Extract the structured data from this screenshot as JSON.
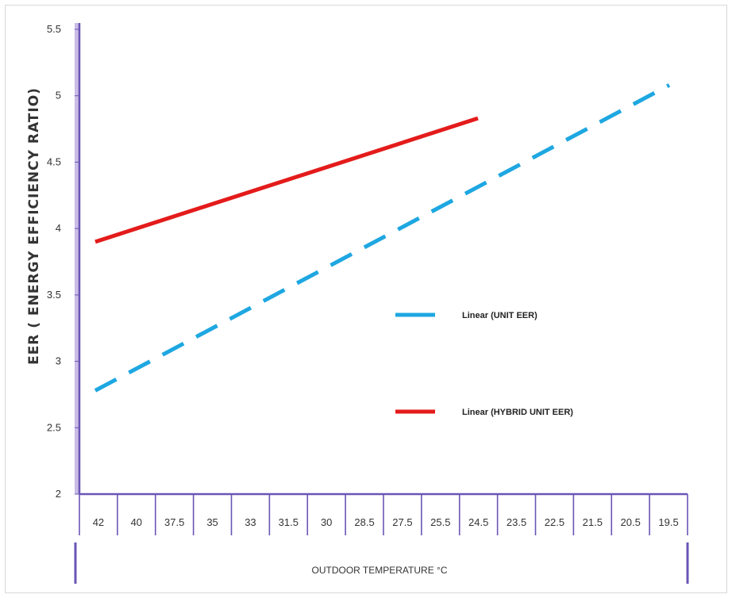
{
  "chart_data": {
    "type": "line",
    "xlabel": "OUTDOOR TEMPERATURE  °C",
    "ylabel": "EER ( ENERGY EFFICIENCY RATIO)",
    "categories": [
      "42",
      "40",
      "37.5",
      "35",
      "33",
      "31.5",
      "30",
      "28.5",
      "27.5",
      "25.5",
      "24.5",
      "23.5",
      "22.5",
      "21.5",
      "20.5",
      "19.5"
    ],
    "yticks": [
      "5.5",
      "5",
      "4.5",
      "4",
      "3.5",
      "3",
      "2.5",
      "2"
    ],
    "ylim": [
      2,
      5.5
    ],
    "grid": false,
    "legend_position": "right-center",
    "series": [
      {
        "name": "Linear (UNIT EER)",
        "color": "#1EA7E1",
        "dash": true,
        "start": {
          "category": "42",
          "value": 2.78
        },
        "end": {
          "category": "19.5",
          "value": 5.08
        }
      },
      {
        "name": "Linear (HYBRID UNIT EER)",
        "color": "#E41B1B",
        "dash": false,
        "start": {
          "category": "42",
          "value": 3.9
        },
        "end": {
          "category": "24.5",
          "value": 4.83
        }
      }
    ]
  }
}
